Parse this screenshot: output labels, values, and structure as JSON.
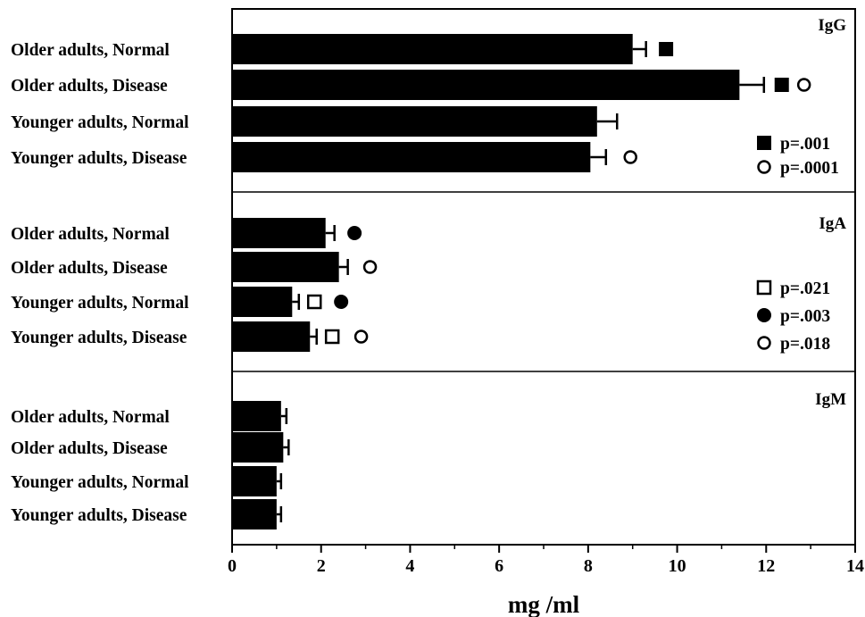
{
  "chart_data": {
    "type": "bar",
    "orientation": "horizontal",
    "xlabel": "mg /ml",
    "xlim": [
      0,
      14
    ],
    "xticks": [
      "0",
      "2",
      "4",
      "6",
      "8",
      "10",
      "12",
      "14"
    ],
    "categories": [
      "Older adults, Normal",
      "Older adults, Disease",
      "Younger adults, Normal",
      "Younger adults, Disease"
    ],
    "panels": [
      {
        "title": "IgG",
        "values": [
          9.0,
          11.4,
          8.2,
          8.05
        ],
        "errors": [
          0.3,
          0.55,
          0.45,
          0.35
        ],
        "markers": [
          {
            "row": 0,
            "x": 9.75,
            "symbol": "filled-square"
          },
          {
            "row": 1,
            "x": 12.35,
            "symbol": "filled-square"
          },
          {
            "row": 1,
            "x": 12.85,
            "symbol": "open-circle"
          },
          {
            "row": 3,
            "x": 8.95,
            "symbol": "open-circle"
          }
        ],
        "legend": [
          {
            "symbol": "filled-square",
            "text": "p=.001"
          },
          {
            "symbol": "open-circle",
            "text": "p=.0001"
          }
        ]
      },
      {
        "title": "IgA",
        "values": [
          2.1,
          2.4,
          1.35,
          1.75
        ],
        "errors": [
          0.2,
          0.2,
          0.15,
          0.15
        ],
        "markers": [
          {
            "row": 0,
            "x": 2.75,
            "symbol": "filled-circle"
          },
          {
            "row": 1,
            "x": 3.1,
            "symbol": "open-circle"
          },
          {
            "row": 2,
            "x": 1.85,
            "symbol": "open-square"
          },
          {
            "row": 2,
            "x": 2.45,
            "symbol": "filled-circle"
          },
          {
            "row": 3,
            "x": 2.25,
            "symbol": "open-square"
          },
          {
            "row": 3,
            "x": 2.9,
            "symbol": "open-circle"
          }
        ],
        "legend": [
          {
            "symbol": "open-square",
            "text": "p=.021"
          },
          {
            "symbol": "filled-circle",
            "text": "p=.003"
          },
          {
            "symbol": "open-circle",
            "text": "p=.018"
          }
        ]
      },
      {
        "title": "IgM",
        "values": [
          1.1,
          1.15,
          1.0,
          1.0
        ],
        "errors": [
          0.12,
          0.12,
          0.1,
          0.1
        ],
        "markers": [],
        "legend": []
      }
    ]
  }
}
